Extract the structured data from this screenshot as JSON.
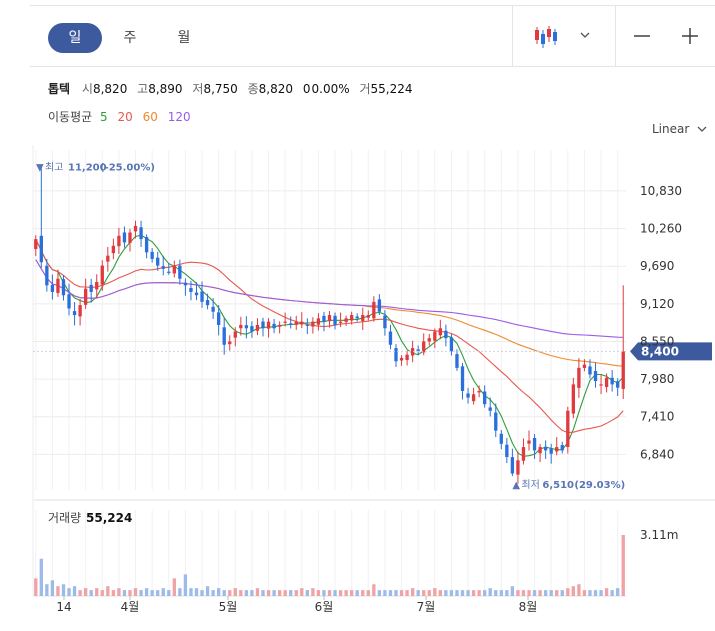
{
  "tabs": [
    {
      "label": "일",
      "active": true
    },
    {
      "label": "주",
      "active": false
    },
    {
      "label": "월",
      "active": false
    }
  ],
  "toolbar": {
    "chart_type_icon": "candlestick-icon",
    "dropdown_icon": "chevron-down-icon",
    "zoom_out_icon": "minus-icon",
    "zoom_in_icon": "plus-icon"
  },
  "quote": {
    "name": "톱텍",
    "open_label": "시",
    "open": "8,820",
    "high_label": "고",
    "high": "8,890",
    "low_label": "저",
    "low": "8,750",
    "close_label": "종",
    "close": "8,820",
    "change": "0",
    "change_pct": "0.00%",
    "volume_label": "거",
    "volume": "55,224"
  },
  "ma_legend": {
    "label": "이동평균",
    "items": [
      {
        "period": "5",
        "color": "#2e9e3a"
      },
      {
        "period": "20",
        "color": "#e8584f"
      },
      {
        "period": "60",
        "color": "#f08a2c"
      },
      {
        "period": "120",
        "color": "#9a5ce6"
      }
    ]
  },
  "scale_selector": "Linear",
  "chart_data": {
    "type": "candlestick",
    "y_ticks": [
      "10,830",
      "10,260",
      "9,690",
      "9,120",
      "8,550",
      "7,980",
      "7,410",
      "6,840"
    ],
    "ylim": [
      6300,
      11450
    ],
    "x_ticks": [
      "14",
      "4월",
      "5월",
      "6월",
      "7월",
      "8월"
    ],
    "current_price": "8,400",
    "current_price_value": 8400,
    "high_annotation": {
      "label": "최고",
      "value": "11,200",
      "pct": "(-25.00%)"
    },
    "low_annotation": {
      "label": "최저",
      "value": "6,510",
      "pct": "(29.03%)"
    },
    "colors": {
      "up": "#e0393e",
      "down": "#2a6fdb",
      "ma5": "#2e9e3a",
      "ma20": "#e8584f",
      "ma60": "#f08a2c",
      "ma120": "#9a5ce6",
      "accent": "#3d5a9e"
    },
    "closes": [
      10100,
      9750,
      9400,
      9300,
      9500,
      9250,
      9050,
      8950,
      9100,
      9350,
      9300,
      9450,
      9700,
      9850,
      10000,
      10150,
      10050,
      10200,
      10300,
      10100,
      9900,
      9800,
      9700,
      9650,
      9600,
      9700,
      9500,
      9400,
      9300,
      9250,
      9150,
      9100,
      9000,
      8800,
      8500,
      8550,
      8700,
      8800,
      8750,
      8700,
      8800,
      8750,
      8850,
      8750,
      8800,
      8850,
      8800,
      8850,
      8850,
      8800,
      8850,
      8900,
      8850,
      8950,
      8800,
      8850,
      8900,
      8950,
      8900,
      8950,
      8950,
      9150,
      9000,
      8750,
      8500,
      8250,
      8300,
      8350,
      8450,
      8400,
      8550,
      8600,
      8700,
      8750,
      8600,
      8400,
      8150,
      7800,
      7700,
      7750,
      7800,
      7600,
      7500,
      7200,
      7000,
      6800,
      6550,
      6750,
      6950,
      7050,
      6900,
      6950,
      6900,
      6850,
      6950,
      6900,
      7500,
      7900,
      8150,
      8200,
      8050,
      7950,
      7900,
      8000,
      7900,
      7850,
      8400
    ],
    "volume": {
      "label": "거래량",
      "value": "55,224",
      "max_label": "3.11m",
      "values": [
        0.9,
        1.9,
        0.6,
        0.8,
        0.5,
        0.6,
        0.4,
        0.5,
        0.3,
        0.4,
        0.3,
        0.4,
        0.3,
        0.5,
        0.3,
        0.4,
        0.3,
        0.3,
        0.4,
        0.3,
        0.4,
        0.3,
        0.3,
        0.4,
        0.3,
        0.9,
        0.4,
        1.1,
        0.4,
        0.4,
        0.3,
        0.5,
        0.3,
        0.4,
        0.3,
        0.3,
        0.4,
        0.3,
        0.3,
        0.3,
        0.4,
        0.3,
        0.3,
        0.3,
        0.3,
        0.3,
        0.3,
        0.3,
        0.4,
        0.3,
        0.4,
        0.3,
        0.3,
        0.3,
        0.3,
        0.3,
        0.3,
        0.3,
        0.3,
        0.3,
        0.3,
        0.6,
        0.3,
        0.3,
        0.3,
        0.3,
        0.3,
        0.3,
        0.4,
        0.3,
        0.3,
        0.3,
        0.4,
        0.3,
        0.3,
        0.3,
        0.3,
        0.3,
        0.3,
        0.3,
        0.3,
        0.3,
        0.4,
        0.3,
        0.3,
        0.3,
        0.5,
        0.3,
        0.3,
        0.3,
        0.3,
        0.3,
        0.3,
        0.3,
        0.3,
        0.3,
        0.4,
        0.5,
        0.6,
        0.3,
        0.3,
        0.3,
        0.3,
        0.4,
        0.3,
        0.4,
        3.11
      ],
      "max_value": 3.11
    }
  }
}
